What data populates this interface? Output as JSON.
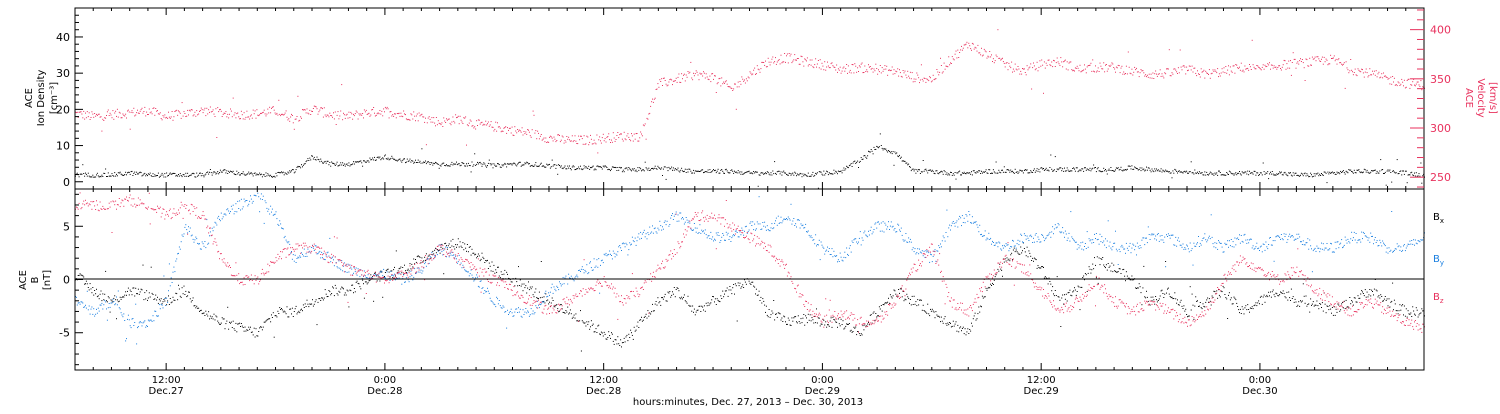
{
  "figure": {
    "xlabel": "hours:minutes, Dec. 27, 2013 – Dec. 30, 2013",
    "x_ticks": [
      {
        "time": "2013-12-27T12:00",
        "top": "12:00",
        "bottom": "Dec.27"
      },
      {
        "time": "2013-12-28T00:00",
        "top": "0:00",
        "bottom": "Dec.28"
      },
      {
        "time": "2013-12-28T12:00",
        "top": "12:00",
        "bottom": "Dec.28"
      },
      {
        "time": "2013-12-29T00:00",
        "top": "0:00",
        "bottom": "Dec.29"
      },
      {
        "time": "2013-12-29T12:00",
        "top": "12:00",
        "bottom": "Dec.29"
      },
      {
        "time": "2013-12-30T00:00",
        "top": "0:00",
        "bottom": "Dec.30"
      }
    ],
    "xlim": [
      "2013-12-27T07:00",
      "2013-12-30T09:00"
    ]
  },
  "colors": {
    "density": "#000000",
    "velocity": "#e8315d",
    "bx": "#000000",
    "by": "#1a7fe0",
    "bz": "#e8315d"
  },
  "chart_data": [
    {
      "type": "scatter",
      "panel": "plasma",
      "y_title": [
        "ACE",
        "Ion Density",
        "[cm⁻³]"
      ],
      "y_ticks": [
        "0",
        "10",
        "20",
        "30",
        "40"
      ],
      "ylim": [
        -2,
        48
      ],
      "y2_title": [
        "ACE",
        "Velocity",
        "[km/s]"
      ],
      "y2_ticks": [
        "250",
        "300",
        "350",
        "400"
      ],
      "y2lim": [
        238,
        422
      ],
      "x_unit": "hours since 2013-12-27T00:00 UT",
      "series": [
        {
          "axis": "left",
          "x": [
            7,
            8,
            9,
            10,
            11,
            12,
            13,
            14,
            15,
            16,
            17,
            18,
            19,
            20,
            21,
            22,
            23,
            24,
            25,
            26,
            27,
            28,
            29,
            30,
            31,
            32,
            33,
            34,
            35,
            36,
            37,
            38,
            39,
            40,
            41,
            42,
            43,
            44,
            45,
            46,
            47,
            48,
            49,
            50,
            51,
            52,
            53,
            54,
            55,
            56,
            57,
            58,
            59,
            60,
            61,
            62,
            63,
            64,
            65,
            66,
            67,
            68,
            69,
            70,
            71,
            72,
            73,
            74,
            75,
            76,
            77,
            78,
            79,
            80,
            81
          ],
          "values": [
            2,
            2,
            2,
            2.5,
            2,
            2,
            2,
            2,
            3,
            2.5,
            2,
            2,
            3,
            7,
            5,
            5,
            6,
            7,
            6,
            5.5,
            5,
            5,
            5,
            4.5,
            5,
            5,
            4.5,
            4,
            4,
            4,
            3.5,
            3.5,
            4,
            3.5,
            3,
            3,
            3,
            2.5,
            2.5,
            2.5,
            2,
            2.5,
            3,
            6,
            10,
            8,
            3,
            3,
            2.5,
            2.5,
            3,
            3,
            3,
            3.5,
            3.5,
            3.5,
            3.5,
            3.5,
            4,
            3.5,
            3,
            3,
            2.5,
            2.5,
            2.5,
            2.5,
            2.5,
            2,
            2,
            2.5,
            3,
            3,
            3,
            2.5,
            2
          ]
        },
        {
          "axis": "right",
          "x": [
            7,
            8,
            9,
            10,
            11,
            12,
            13,
            14,
            15,
            16,
            17,
            18,
            19,
            20,
            21,
            22,
            23,
            24,
            25,
            26,
            27,
            28,
            29,
            30,
            31,
            32,
            33,
            34,
            35,
            36,
            37,
            38,
            39,
            40,
            41,
            42,
            43,
            44,
            45,
            46,
            47,
            48,
            49,
            50,
            51,
            52,
            53,
            54,
            55,
            56,
            57,
            58,
            59,
            60,
            61,
            62,
            63,
            64,
            65,
            66,
            67,
            68,
            69,
            70,
            71,
            72,
            73,
            74,
            75,
            76,
            77,
            78,
            79,
            80,
            81
          ],
          "values": [
            315,
            312,
            314,
            316,
            318,
            312,
            315,
            318,
            316,
            314,
            315,
            318,
            310,
            320,
            314,
            312,
            316,
            318,
            314,
            312,
            306,
            310,
            304,
            302,
            298,
            295,
            290,
            288,
            288,
            290,
            292,
            292,
            345,
            350,
            355,
            352,
            340,
            355,
            368,
            372,
            368,
            365,
            360,
            362,
            360,
            358,
            352,
            350,
            370,
            386,
            375,
            365,
            358,
            365,
            368,
            360,
            362,
            362,
            358,
            355,
            356,
            360,
            355,
            358,
            362,
            360,
            364,
            366,
            368,
            370,
            360,
            356,
            350,
            346,
            344
          ]
        }
      ]
    },
    {
      "type": "scatter",
      "panel": "magnetic",
      "y_title": [
        "ACE",
        "B",
        "[nT]"
      ],
      "y_ticks": [
        "-5",
        "0",
        "5"
      ],
      "ylim": [
        -8.5,
        8.5
      ],
      "x_unit": "hours since 2013-12-27T00:00 UT",
      "series": [
        {
          "name": "Bx",
          "x": [
            7,
            8,
            9,
            10,
            11,
            12,
            13,
            14,
            15,
            16,
            17,
            18,
            19,
            20,
            21,
            22,
            23,
            24,
            25,
            26,
            27,
            28,
            29,
            30,
            31,
            32,
            33,
            34,
            35,
            36,
            37,
            38,
            39,
            40,
            41,
            42,
            43,
            44,
            45,
            46,
            47,
            48,
            49,
            50,
            51,
            52,
            53,
            54,
            55,
            56,
            57,
            58,
            59,
            60,
            61,
            62,
            63,
            64,
            65,
            66,
            67,
            68,
            69,
            70,
            71,
            72,
            73,
            74,
            75,
            76,
            77,
            78,
            79,
            80,
            81
          ],
          "values": [
            0.5,
            -1,
            -2,
            -1,
            -1.5,
            -2,
            -1,
            -3,
            -4,
            -4.5,
            -5,
            -3,
            -3,
            -2,
            -1,
            -1,
            0,
            0.5,
            1,
            2,
            3,
            3.5,
            2.5,
            1,
            0,
            -1,
            -2,
            -3,
            -4,
            -5,
            -6,
            -4,
            -2,
            -1,
            -3,
            -2,
            -1,
            0,
            -3,
            -4,
            -3.5,
            -4,
            -4,
            -5,
            -3,
            -1,
            -2,
            -3,
            -4,
            -5,
            -1,
            2,
            3,
            1,
            -2,
            -1,
            2,
            1,
            0,
            -2,
            -1,
            -3,
            -2,
            -1,
            -3,
            -2,
            -1,
            -2,
            -2,
            -3,
            -2,
            -1,
            -2,
            -3,
            -3
          ]
        },
        {
          "name": "By",
          "x": [
            7,
            8,
            9,
            10,
            11,
            12,
            13,
            14,
            15,
            16,
            17,
            18,
            19,
            20,
            21,
            22,
            23,
            24,
            25,
            26,
            27,
            28,
            29,
            30,
            31,
            32,
            33,
            34,
            35,
            36,
            37,
            38,
            39,
            40,
            41,
            42,
            43,
            44,
            45,
            46,
            47,
            48,
            49,
            50,
            51,
            52,
            53,
            54,
            55,
            56,
            57,
            58,
            59,
            60,
            61,
            62,
            63,
            64,
            65,
            66,
            67,
            68,
            69,
            70,
            71,
            72,
            73,
            74,
            75,
            76,
            77,
            78,
            79,
            80,
            81
          ],
          "values": [
            -2,
            -3,
            -2,
            -4,
            -4,
            -2,
            5,
            3,
            6,
            7,
            8,
            6,
            2,
            3,
            2,
            1,
            0.5,
            0.5,
            0,
            1,
            3,
            2,
            0,
            -2,
            -3,
            -3,
            -1,
            0,
            1,
            2,
            3,
            4,
            5,
            6,
            5,
            4,
            4,
            5,
            5,
            6,
            5,
            3,
            2,
            4,
            5,
            5,
            3,
            2,
            5,
            6,
            4,
            3,
            4,
            4,
            5,
            3,
            4,
            3,
            3,
            4,
            4,
            3,
            4,
            3,
            4,
            3,
            4,
            4,
            3,
            3,
            4,
            4,
            3,
            3,
            4
          ]
        },
        {
          "name": "Bz",
          "x": [
            7,
            8,
            9,
            10,
            11,
            12,
            13,
            14,
            15,
            16,
            17,
            18,
            19,
            20,
            21,
            22,
            23,
            24,
            25,
            26,
            27,
            28,
            29,
            30,
            31,
            32,
            33,
            34,
            35,
            36,
            37,
            38,
            39,
            40,
            41,
            42,
            43,
            44,
            45,
            46,
            47,
            48,
            49,
            50,
            51,
            52,
            53,
            54,
            55,
            56,
            57,
            58,
            59,
            60,
            61,
            62,
            63,
            64,
            65,
            66,
            67,
            68,
            69,
            70,
            71,
            72,
            73,
            74,
            75,
            76,
            77,
            78,
            79,
            80,
            81
          ],
          "values": [
            7,
            7,
            7,
            7.5,
            7,
            6,
            7,
            6,
            2,
            0,
            0,
            2,
            3,
            3,
            2,
            1,
            0.5,
            0,
            0.5,
            1.5,
            3,
            2,
            1,
            0,
            -1,
            -2,
            -3,
            -2,
            -1,
            0,
            -2,
            -1,
            1,
            3,
            6,
            6,
            5,
            4,
            3,
            1,
            -2,
            -4,
            -3,
            -4,
            -4,
            -2,
            1,
            3,
            -2,
            -3,
            0,
            2,
            1,
            -1,
            -3,
            -2,
            0,
            -2,
            -3,
            -2,
            -3,
            -4,
            -3,
            0,
            2,
            1,
            0,
            1,
            -1,
            -2,
            -3,
            -2,
            -3,
            -4,
            -4.5
          ]
        }
      ],
      "legend": [
        {
          "name": "Bx",
          "base": "B",
          "sub": "x"
        },
        {
          "name": "By",
          "base": "B",
          "sub": "y"
        },
        {
          "name": "Bz",
          "base": "B",
          "sub": "z"
        }
      ]
    }
  ]
}
